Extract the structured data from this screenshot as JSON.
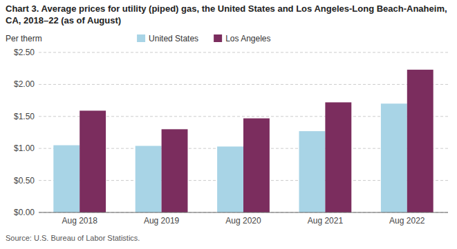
{
  "chart_data": {
    "type": "bar",
    "title": "Chart 3. Average prices for utility (piped) gas, the United States and Los Angeles-Long Beach-Anaheim, CA, 2018–22 (as of August)",
    "y_label": "Per therm",
    "source": "Source: U.S. Bureau of Labor Statistics.",
    "categories": [
      "Aug 2018",
      "Aug 2019",
      "Aug 2020",
      "Aug 2021",
      "Aug 2022"
    ],
    "series": [
      {
        "name": "United States",
        "color": "#a8d4e6",
        "values": [
          1.05,
          1.04,
          1.03,
          1.27,
          1.7
        ]
      },
      {
        "name": "Los Angeles",
        "color": "#7b2d5e",
        "values": [
          1.59,
          1.3,
          1.47,
          1.72,
          2.23
        ]
      }
    ],
    "ylim": [
      0.0,
      2.5
    ],
    "yticks": [
      {
        "value": 0.0,
        "label": "$0.00"
      },
      {
        "value": 0.5,
        "label": "$0.50"
      },
      {
        "value": 1.0,
        "label": "$1.00"
      },
      {
        "value": 1.5,
        "label": "$1.50"
      },
      {
        "value": 2.0,
        "label": "$2.00"
      },
      {
        "value": 2.5,
        "label": "$2.50"
      }
    ],
    "grid": true,
    "legend": "top"
  }
}
